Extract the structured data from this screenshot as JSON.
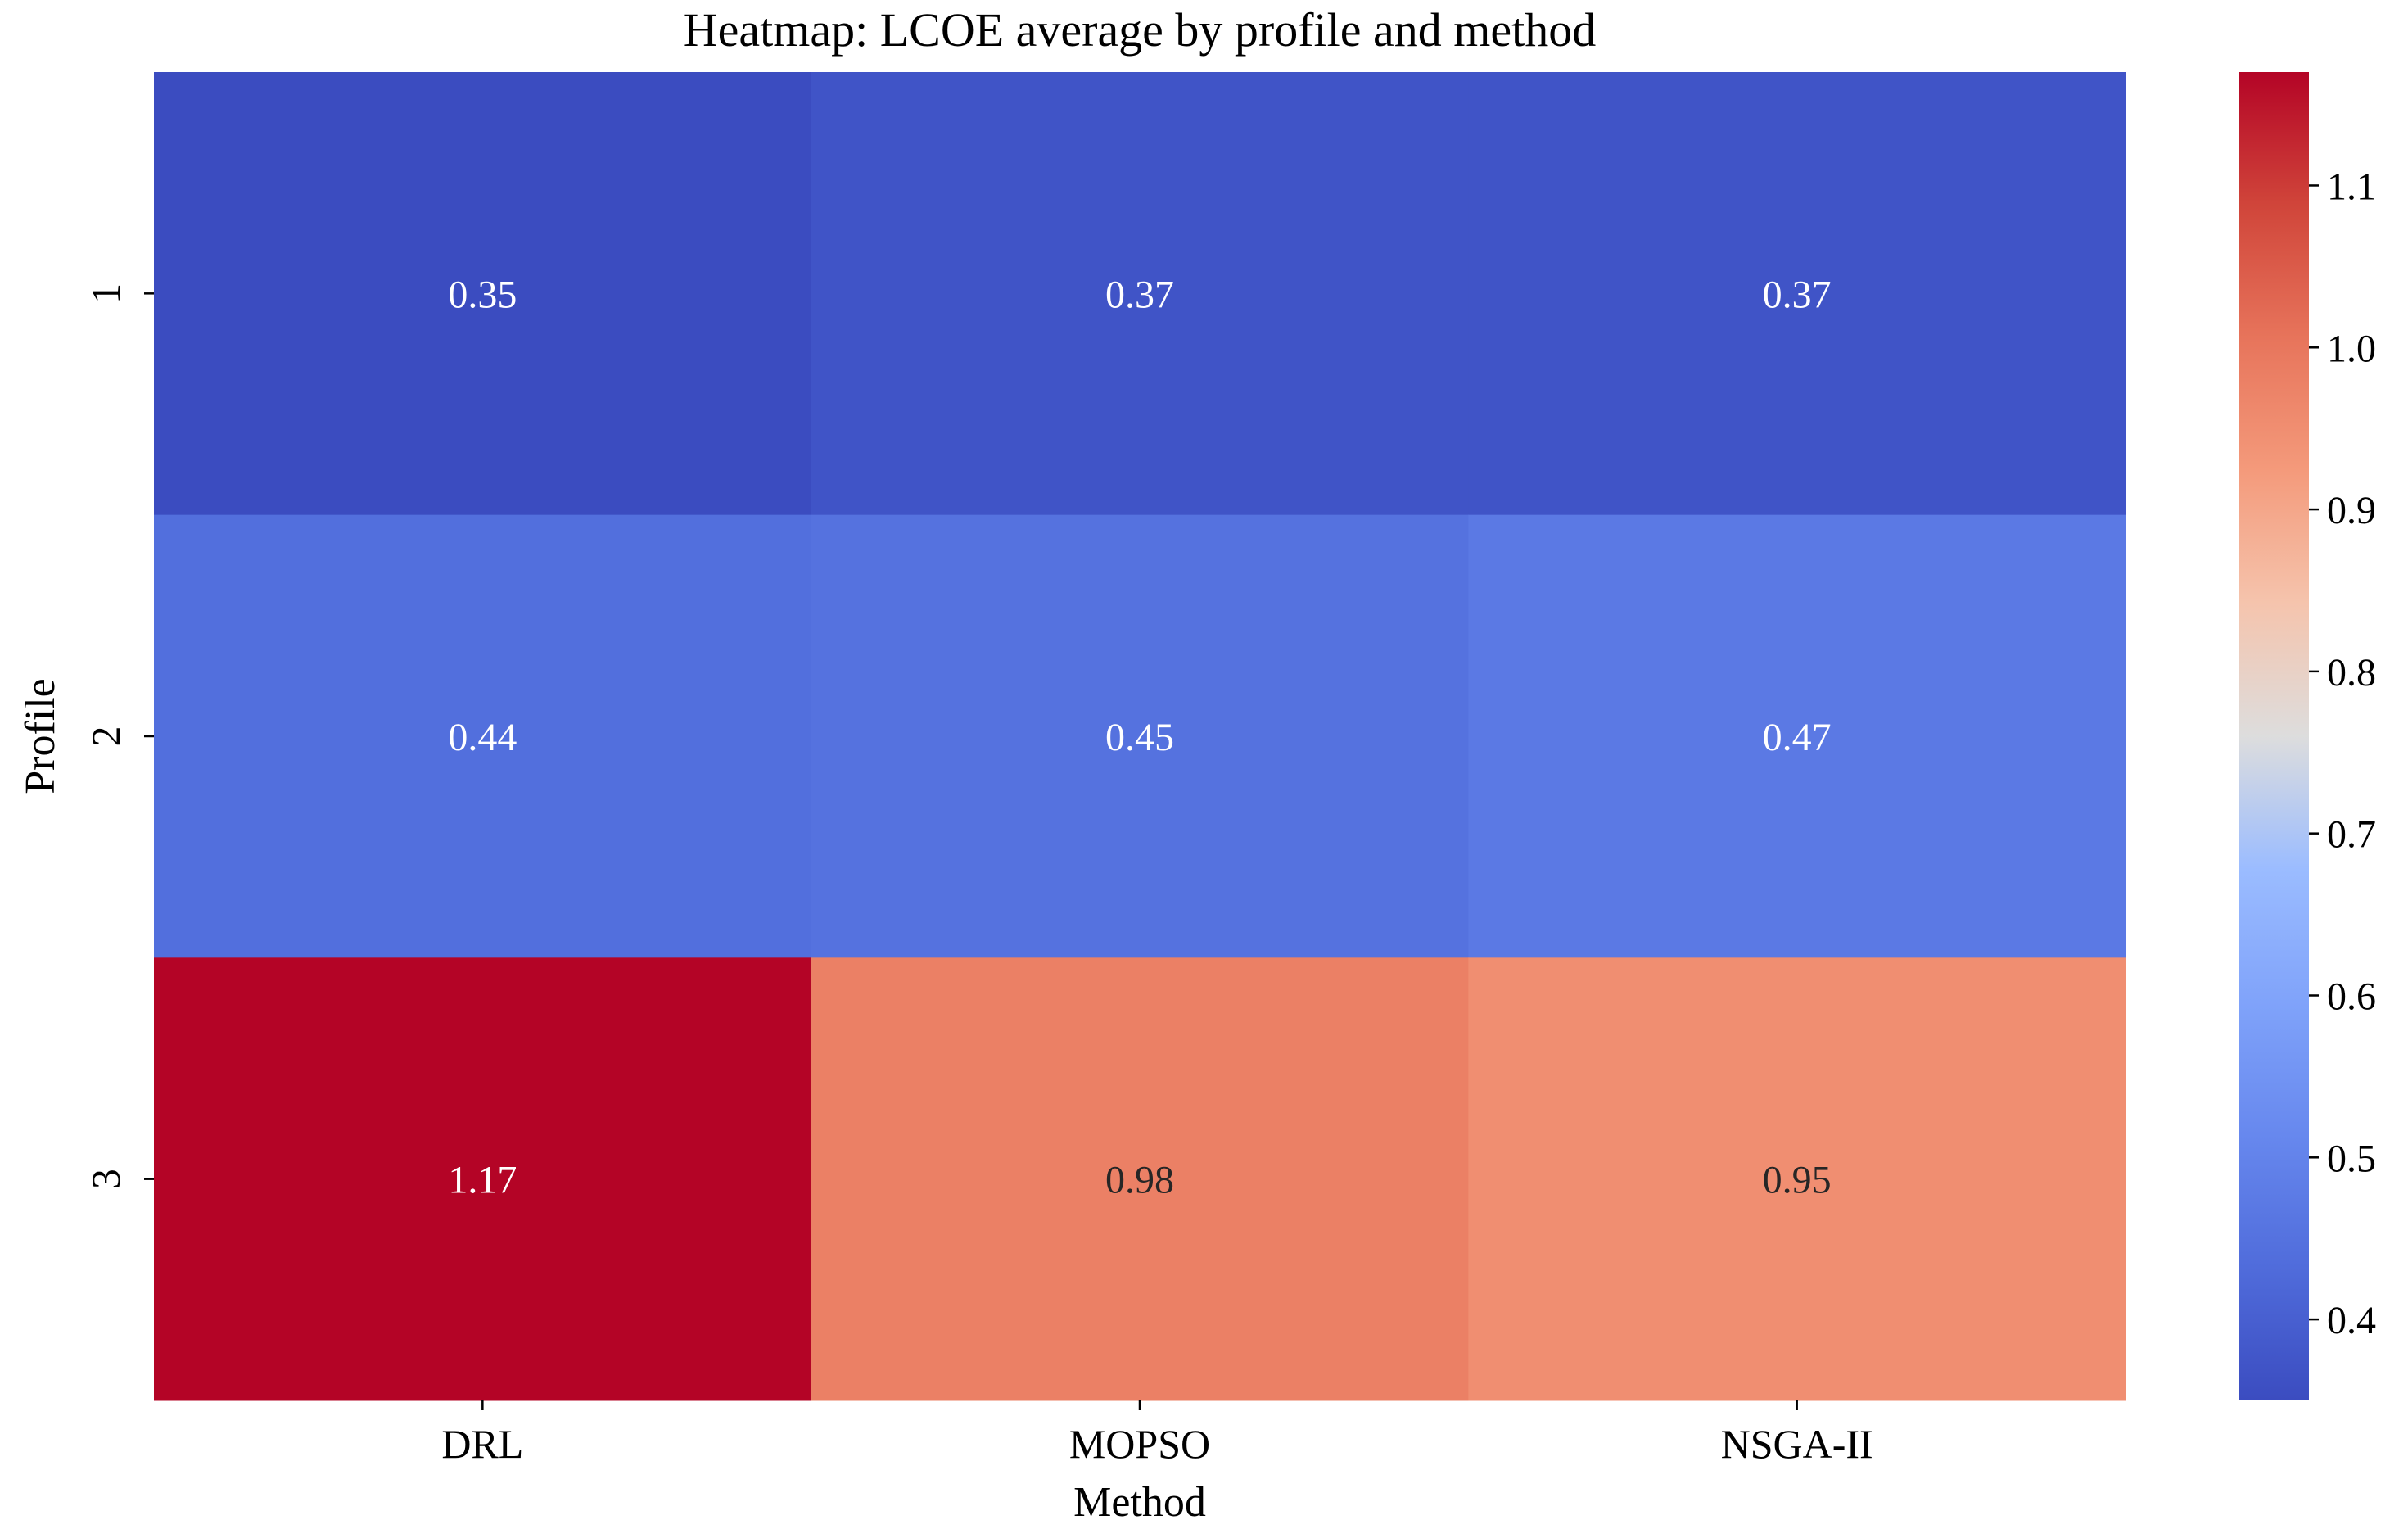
{
  "chart_data": {
    "type": "heatmap",
    "title": "Heatmap: LCOE average by profile and method",
    "xlabel": "Method",
    "ylabel": "Profile",
    "x_categories": [
      "DRL",
      "MOPSO",
      "NSGA-II"
    ],
    "y_categories": [
      "1",
      "2",
      "3"
    ],
    "values": [
      [
        0.35,
        0.37,
        0.37
      ],
      [
        0.44,
        0.45,
        0.47
      ],
      [
        1.17,
        0.98,
        0.95
      ]
    ],
    "value_labels": [
      [
        "0.35",
        "0.37",
        "0.37"
      ],
      [
        "0.44",
        "0.45",
        "0.47"
      ],
      [
        "1.17",
        "0.98",
        "0.95"
      ]
    ],
    "colormap": "coolwarm",
    "color_range": [
      0.35,
      1.17
    ],
    "colorbar_ticks": [
      0.4,
      0.5,
      0.6,
      0.7,
      0.8,
      0.9,
      1.0,
      1.1
    ],
    "colorbar_tick_labels": [
      "0.4",
      "0.5",
      "0.6",
      "0.7",
      "0.8",
      "0.9",
      "1.0",
      "1.1"
    ],
    "colorbar_position": "right",
    "grid": false
  }
}
